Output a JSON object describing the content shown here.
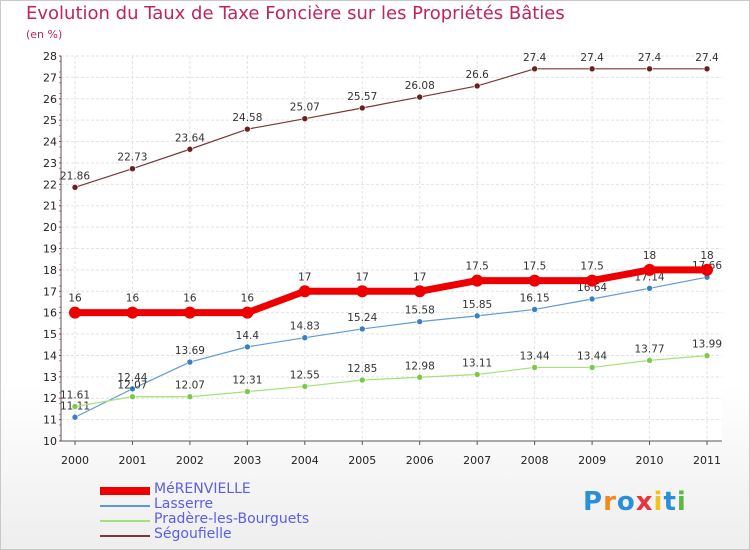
{
  "title": "Evolution du Taux de Taxe Foncière sur les Propriétés Bâties",
  "subtitle": "(en %)",
  "logo": {
    "text": [
      "P",
      "r",
      "o",
      "x",
      "i",
      "t",
      "i"
    ],
    "colors": [
      "#2a8fd8",
      "#f28a1e",
      "#2a8fd8",
      "#e8343a",
      "#f2c21e",
      "#2a8fd8",
      "#5cb848"
    ]
  },
  "chart_data": {
    "type": "line",
    "x": [
      "2000",
      "2001",
      "2002",
      "2003",
      "2004",
      "2005",
      "2006",
      "2007",
      "2008",
      "2009",
      "2010",
      "2011"
    ],
    "ylim": [
      10,
      28
    ],
    "yticks": [
      "10",
      "11",
      "12",
      "13",
      "14",
      "15",
      "16",
      "17",
      "18",
      "19",
      "20",
      "21",
      "22",
      "23",
      "24",
      "25",
      "26",
      "27",
      "28"
    ],
    "grid": true,
    "legend_position": "bottom-left",
    "series": [
      {
        "name": "Ségoufielle",
        "color": "#7a3838",
        "width": 1.2,
        "dot": "#6b1f1f",
        "values": [
          21.86,
          22.73,
          23.64,
          24.58,
          25.07,
          25.57,
          26.08,
          26.6,
          27.4,
          27.4,
          27.4,
          27.4
        ],
        "labels": [
          "21.86",
          "22.73",
          "23.64",
          "24.58",
          "25.07",
          "25.57",
          "26.08",
          "26.6",
          "27.4",
          "27.4",
          "27.4",
          "27.4"
        ]
      },
      {
        "name": "Lasserre",
        "color": "#5b9bd5",
        "width": 1.2,
        "dot": "#3a7fc4",
        "values": [
          11.11,
          12.44,
          13.69,
          14.4,
          14.83,
          15.24,
          15.58,
          15.85,
          16.15,
          16.64,
          17.14,
          17.66
        ],
        "labels": [
          "11.11",
          "12.44",
          "13.69",
          "14.4",
          "14.83",
          "15.24",
          "15.58",
          "15.85",
          "16.15",
          "16.64",
          "17.14",
          "17.66"
        ]
      },
      {
        "name": "Pradère-les-Bourguets",
        "color": "#a6e07a",
        "width": 1.2,
        "dot": "#7cc94a",
        "values": [
          11.61,
          12.07,
          12.07,
          12.31,
          12.55,
          12.85,
          12.98,
          13.11,
          13.44,
          13.44,
          13.77,
          13.99
        ],
        "labels": [
          "11.61",
          "12.07",
          "12.07",
          "12.31",
          "12.55",
          "12.85",
          "12.98",
          "13.11",
          "13.44",
          "13.44",
          "13.77",
          "13.99"
        ]
      },
      {
        "name": "MéRENVIELLE",
        "color": "#ee0000",
        "width": 7,
        "dot": "#ee0000",
        "values": [
          16,
          16,
          16,
          16,
          17,
          17,
          17,
          17.5,
          17.5,
          17.5,
          18,
          18
        ],
        "labels": [
          "16",
          "16",
          "16",
          "16",
          "17",
          "17",
          "17",
          "17.5",
          "17.5",
          "17.5",
          "18",
          "18"
        ]
      }
    ],
    "legend_order": [
      3,
      1,
      2,
      0
    ]
  }
}
